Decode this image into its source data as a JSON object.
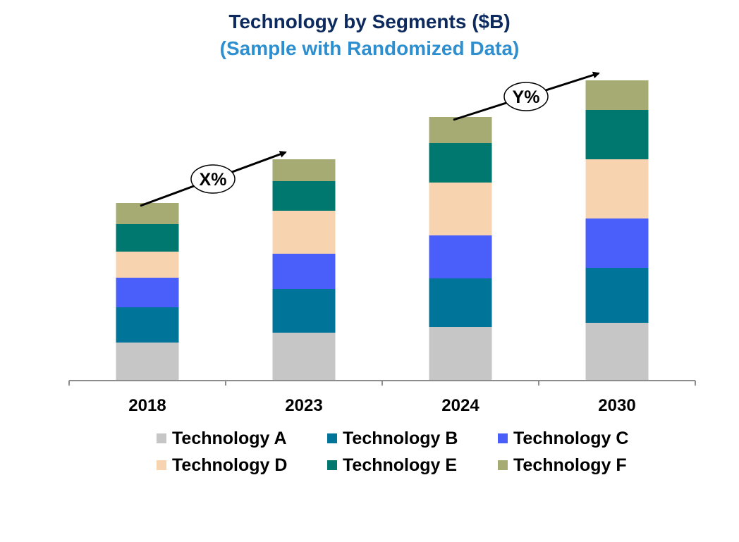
{
  "title": "Technology by Segments ($B)",
  "subtitle": "(Sample with Randomized Data)",
  "chart_data": {
    "type": "bar",
    "stacked": true,
    "title": "Technology by Segments ($B)",
    "subtitle": "(Sample with Randomized Data)",
    "xlabel": "",
    "ylabel": "",
    "categories": [
      "2018",
      "2023",
      "2024",
      "2030"
    ],
    "ylim": [
      0,
      440
    ],
    "grid": false,
    "legend_position": "bottom",
    "series": [
      {
        "name": "Technology A",
        "color": "#c6c6c6",
        "values": [
          54,
          68,
          76,
          82
        ]
      },
      {
        "name": "Technology B",
        "color": "#007599",
        "values": [
          50,
          62,
          69,
          78
        ]
      },
      {
        "name": "Technology C",
        "color": "#4a5efa",
        "values": [
          42,
          50,
          61,
          70
        ]
      },
      {
        "name": "Technology D",
        "color": "#f8d3b0",
        "values": [
          37,
          61,
          75,
          84
        ]
      },
      {
        "name": "Technology E",
        "color": "#007870",
        "values": [
          39,
          42,
          56,
          70
        ]
      },
      {
        "name": "Technology F",
        "color": "#a6ab73",
        "values": [
          30,
          31,
          37,
          42
        ]
      }
    ],
    "annotations": [
      {
        "text": "X%",
        "from": "2018",
        "to": "2023"
      },
      {
        "text": "Y%",
        "from": "2024",
        "to": "2030"
      }
    ]
  }
}
